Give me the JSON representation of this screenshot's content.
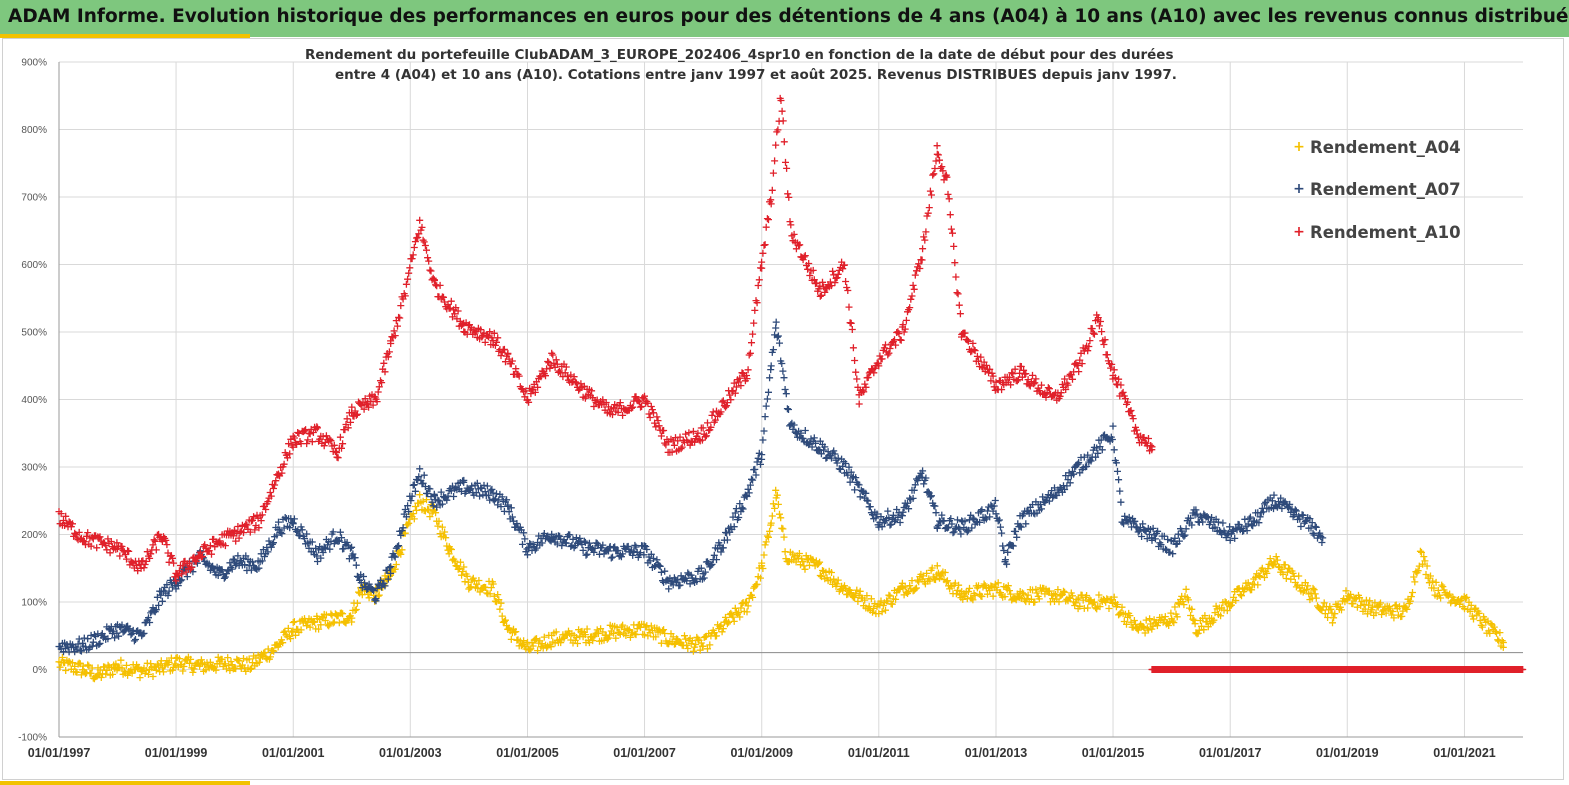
{
  "banner": {
    "title": "ADAM Informe. Evolution historique des performances en euros pour des détentions de 4 ans (A04) à 10 ans (A10) avec les revenus connus distribués"
  },
  "chart_data": {
    "type": "scatter",
    "title_line1": "Rendement du portefeuille ClubADAM_3_EUROPE_202406_4spr10  en fonction de la date de début pour des durées",
    "title_line2": "entre 4 (A04) et 10 ans (A10). Cotations entre janv 1997 et août 2025. Revenus DISTRIBUES depuis janv 1997.",
    "ylim": [
      -100,
      900
    ],
    "y_ticks": [
      900,
      800,
      700,
      600,
      500,
      400,
      300,
      200,
      100,
      0,
      -100
    ],
    "y_tick_labels": [
      "900%",
      "800%",
      "700%",
      "600%",
      "500%",
      "400%",
      "300%",
      "200%",
      "100%",
      "0%",
      "-100%"
    ],
    "xlim": [
      "1997-01-01",
      "2022-01-01"
    ],
    "x_ticks": [
      "1997-01-01",
      "1999-01-01",
      "2001-01-01",
      "2003-01-01",
      "2005-01-01",
      "2007-01-01",
      "2009-01-01",
      "2011-01-01",
      "2013-01-01",
      "2015-01-01",
      "2017-01-01",
      "2019-01-01",
      "2021-01-01"
    ],
    "x_tick_labels": [
      "01/01/1997",
      "01/01/1999",
      "01/01/2001",
      "01/01/2003",
      "01/01/2005",
      "01/01/2007",
      "01/01/2009",
      "01/01/2011",
      "01/01/2013",
      "01/01/2015",
      "01/01/2017",
      "01/01/2019",
      "01/01/2021"
    ],
    "marker": "+",
    "grid": true,
    "legend_position": "top-right",
    "series": [
      {
        "name": "Rendement_A04",
        "color": "#f5c000",
        "points": [
          [
            "1997-01-01",
            8
          ],
          [
            "1997-06-01",
            0
          ],
          [
            "1997-09-01",
            -8
          ],
          [
            "1998-01-01",
            5
          ],
          [
            "1998-06-01",
            -2
          ],
          [
            "1998-10-01",
            2
          ],
          [
            "1999-01-01",
            10
          ],
          [
            "1999-06-01",
            5
          ],
          [
            "1999-10-01",
            8
          ],
          [
            "2000-01-01",
            10
          ],
          [
            "2000-04-01",
            5
          ],
          [
            "2000-07-01",
            20
          ],
          [
            "2000-09-01",
            30
          ],
          [
            "2001-01-01",
            60
          ],
          [
            "2001-06-01",
            70
          ],
          [
            "2001-10-01",
            75
          ],
          [
            "2002-01-01",
            80
          ],
          [
            "2002-03-01",
            120
          ],
          [
            "2002-06-01",
            110
          ],
          [
            "2002-09-01",
            140
          ],
          [
            "2002-12-01",
            200
          ],
          [
            "2003-03-01",
            250
          ],
          [
            "2003-06-01",
            230
          ],
          [
            "2003-09-01",
            180
          ],
          [
            "2004-01-01",
            130
          ],
          [
            "2004-06-01",
            120
          ],
          [
            "2004-09-01",
            60
          ],
          [
            "2005-01-01",
            30
          ],
          [
            "2005-06-01",
            45
          ],
          [
            "2006-01-01",
            50
          ],
          [
            "2006-06-01",
            55
          ],
          [
            "2007-01-01",
            60
          ],
          [
            "2007-06-01",
            45
          ],
          [
            "2008-01-01",
            35
          ],
          [
            "2008-06-01",
            70
          ],
          [
            "2008-10-01",
            95
          ],
          [
            "2009-01-01",
            150
          ],
          [
            "2009-03-01",
            220
          ],
          [
            "2009-04-01",
            260
          ],
          [
            "2009-06-01",
            170
          ],
          [
            "2010-01-01",
            150
          ],
          [
            "2010-06-01",
            120
          ],
          [
            "2011-01-01",
            90
          ],
          [
            "2011-06-01",
            120
          ],
          [
            "2012-01-01",
            145
          ],
          [
            "2012-06-01",
            110
          ],
          [
            "2013-01-01",
            120
          ],
          [
            "2013-06-01",
            110
          ],
          [
            "2014-01-01",
            110
          ],
          [
            "2014-06-01",
            100
          ],
          [
            "2015-01-01",
            100
          ],
          [
            "2015-06-01",
            60
          ],
          [
            "2016-01-01",
            75
          ],
          [
            "2016-04-01",
            110
          ],
          [
            "2016-06-01",
            60
          ],
          [
            "2017-01-01",
            100
          ],
          [
            "2017-06-01",
            130
          ],
          [
            "2017-10-01",
            160
          ],
          [
            "2018-06-01",
            110
          ],
          [
            "2018-10-01",
            80
          ],
          [
            "2019-01-01",
            110
          ],
          [
            "2019-06-01",
            90
          ],
          [
            "2020-01-01",
            85
          ],
          [
            "2020-04-01",
            170
          ],
          [
            "2020-07-01",
            120
          ],
          [
            "2021-01-01",
            100
          ],
          [
            "2021-06-01",
            60
          ],
          [
            "2021-09-01",
            40
          ]
        ]
      },
      {
        "name": "Rendement_A07",
        "color": "#2e4a7a",
        "points": [
          [
            "1997-01-01",
            35
          ],
          [
            "1997-06-01",
            35
          ],
          [
            "1998-01-01",
            60
          ],
          [
            "1998-06-01",
            50
          ],
          [
            "1998-10-01",
            110
          ],
          [
            "1999-01-01",
            130
          ],
          [
            "1999-06-01",
            165
          ],
          [
            "1999-10-01",
            140
          ],
          [
            "2000-01-01",
            160
          ],
          [
            "2000-06-01",
            155
          ],
          [
            "2000-10-01",
            210
          ],
          [
            "2001-01-01",
            220
          ],
          [
            "2001-06-01",
            170
          ],
          [
            "2001-10-01",
            200
          ],
          [
            "2002-01-01",
            170
          ],
          [
            "2002-03-01",
            130
          ],
          [
            "2002-06-01",
            110
          ],
          [
            "2002-09-01",
            150
          ],
          [
            "2002-12-01",
            230
          ],
          [
            "2003-03-01",
            290
          ],
          [
            "2003-06-01",
            250
          ],
          [
            "2003-12-01",
            270
          ],
          [
            "2004-06-01",
            260
          ],
          [
            "2004-09-01",
            240
          ],
          [
            "2005-01-01",
            180
          ],
          [
            "2005-06-01",
            200
          ],
          [
            "2006-01-01",
            180
          ],
          [
            "2006-06-01",
            175
          ],
          [
            "2007-01-01",
            175
          ],
          [
            "2007-06-01",
            130
          ],
          [
            "2008-01-01",
            140
          ],
          [
            "2008-06-01",
            200
          ],
          [
            "2008-10-01",
            260
          ],
          [
            "2009-01-01",
            320
          ],
          [
            "2009-03-01",
            450
          ],
          [
            "2009-04-01",
            510
          ],
          [
            "2009-07-01",
            360
          ],
          [
            "2010-01-01",
            330
          ],
          [
            "2010-06-01",
            300
          ],
          [
            "2011-01-01",
            220
          ],
          [
            "2011-06-01",
            230
          ],
          [
            "2011-10-01",
            290
          ],
          [
            "2012-01-01",
            220
          ],
          [
            "2012-06-01",
            210
          ],
          [
            "2013-01-01",
            240
          ],
          [
            "2013-03-01",
            160
          ],
          [
            "2013-06-01",
            220
          ],
          [
            "2014-01-01",
            260
          ],
          [
            "2014-06-01",
            300
          ],
          [
            "2015-01-01",
            350
          ],
          [
            "2015-03-01",
            220
          ],
          [
            "2015-09-01",
            200
          ],
          [
            "2016-01-01",
            180
          ],
          [
            "2016-06-01",
            230
          ],
          [
            "2017-01-01",
            200
          ],
          [
            "2017-06-01",
            220
          ],
          [
            "2017-10-01",
            250
          ],
          [
            "2018-06-01",
            210
          ],
          [
            "2018-08-01",
            195
          ]
        ]
      },
      {
        "name": "Rendement_A10",
        "color": "#e0202a",
        "points": [
          [
            "1997-01-01",
            225
          ],
          [
            "1997-06-01",
            195
          ],
          [
            "1998-01-01",
            180
          ],
          [
            "1998-06-01",
            150
          ],
          [
            "1998-10-01",
            200
          ],
          [
            "1999-01-01",
            140
          ],
          [
            "1999-06-01",
            170
          ],
          [
            "1999-10-01",
            190
          ],
          [
            "2000-01-01",
            200
          ],
          [
            "2000-06-01",
            220
          ],
          [
            "2000-10-01",
            290
          ],
          [
            "2001-01-01",
            340
          ],
          [
            "2001-06-01",
            350
          ],
          [
            "2001-10-01",
            320
          ],
          [
            "2002-01-01",
            380
          ],
          [
            "2002-06-01",
            400
          ],
          [
            "2002-09-01",
            480
          ],
          [
            "2002-12-01",
            560
          ],
          [
            "2003-03-01",
            660
          ],
          [
            "2003-06-01",
            570
          ],
          [
            "2003-12-01",
            510
          ],
          [
            "2004-06-01",
            490
          ],
          [
            "2004-09-01",
            460
          ],
          [
            "2005-01-01",
            400
          ],
          [
            "2005-06-01",
            460
          ],
          [
            "2006-01-01",
            410
          ],
          [
            "2006-06-01",
            380
          ],
          [
            "2007-01-01",
            400
          ],
          [
            "2007-06-01",
            330
          ],
          [
            "2008-01-01",
            350
          ],
          [
            "2008-06-01",
            400
          ],
          [
            "2008-10-01",
            440
          ],
          [
            "2009-01-01",
            600
          ],
          [
            "2009-03-01",
            700
          ],
          [
            "2009-05-01",
            850
          ],
          [
            "2009-07-01",
            650
          ],
          [
            "2010-01-01",
            560
          ],
          [
            "2010-06-01",
            600
          ],
          [
            "2010-09-01",
            400
          ],
          [
            "2011-01-01",
            460
          ],
          [
            "2011-06-01",
            500
          ],
          [
            "2011-10-01",
            620
          ],
          [
            "2012-01-01",
            770
          ],
          [
            "2012-03-01",
            720
          ],
          [
            "2012-06-01",
            500
          ],
          [
            "2013-01-01",
            420
          ],
          [
            "2013-06-01",
            440
          ],
          [
            "2014-01-01",
            400
          ],
          [
            "2014-06-01",
            450
          ],
          [
            "2014-10-01",
            520
          ],
          [
            "2015-01-01",
            440
          ],
          [
            "2015-06-01",
            350
          ],
          [
            "2015-09-01",
            330
          ]
        ],
        "zero_line_from": "2015-09-01",
        "zero_line_to": "2022-01-01"
      }
    ]
  }
}
